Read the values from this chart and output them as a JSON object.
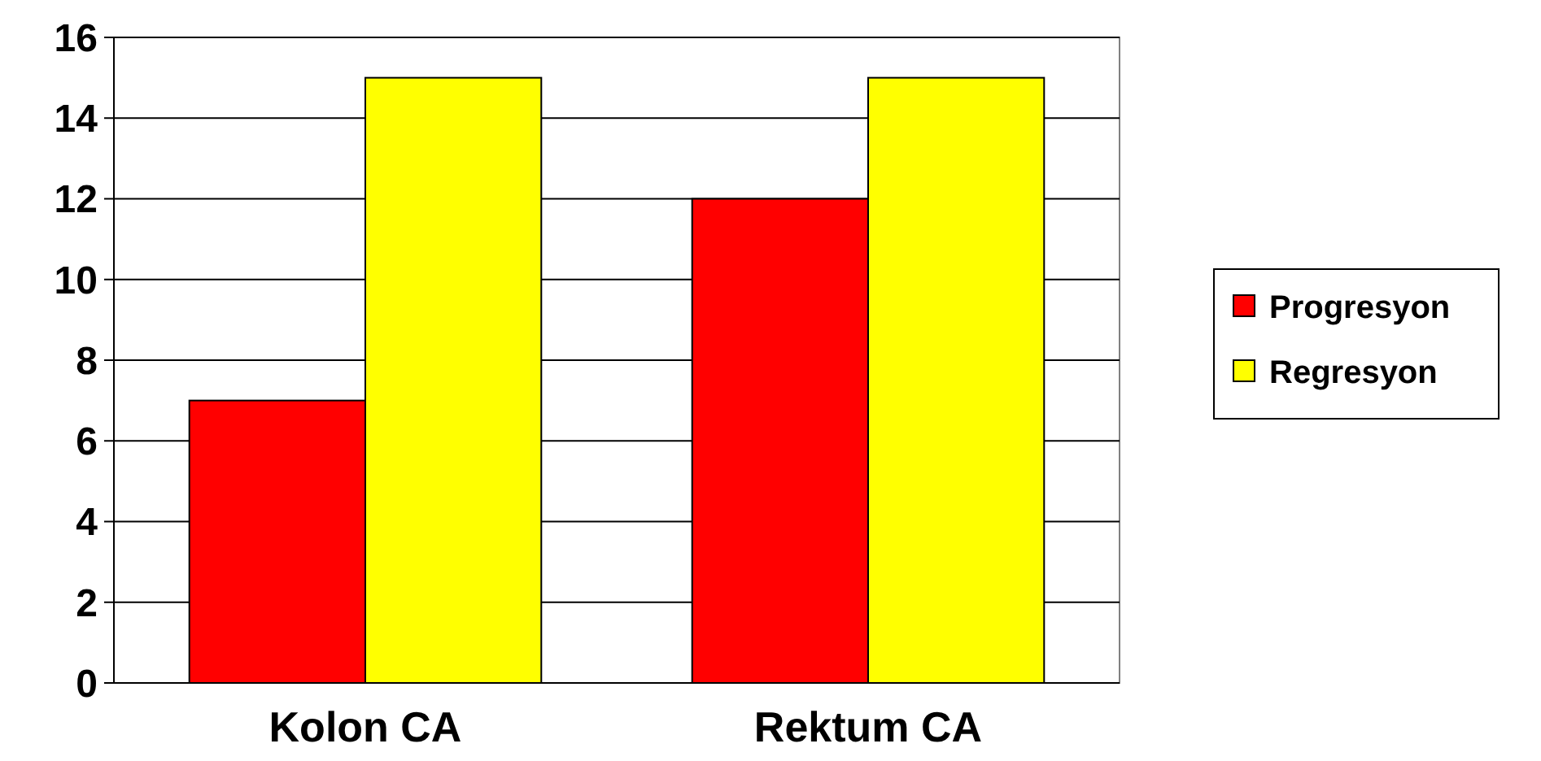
{
  "chart_data": {
    "type": "bar",
    "categories": [
      "Kolon CA",
      "Rektum CA"
    ],
    "series": [
      {
        "name": "Progresyon",
        "color": "#ff0000",
        "values": [
          7,
          12
        ]
      },
      {
        "name": "Regresyon",
        "color": "#ffff00",
        "values": [
          15,
          15
        ]
      }
    ],
    "ylim": [
      0,
      16
    ],
    "yticks": [
      0,
      2,
      4,
      6,
      8,
      10,
      12,
      14,
      16
    ],
    "grid": "y",
    "legend": "right"
  }
}
